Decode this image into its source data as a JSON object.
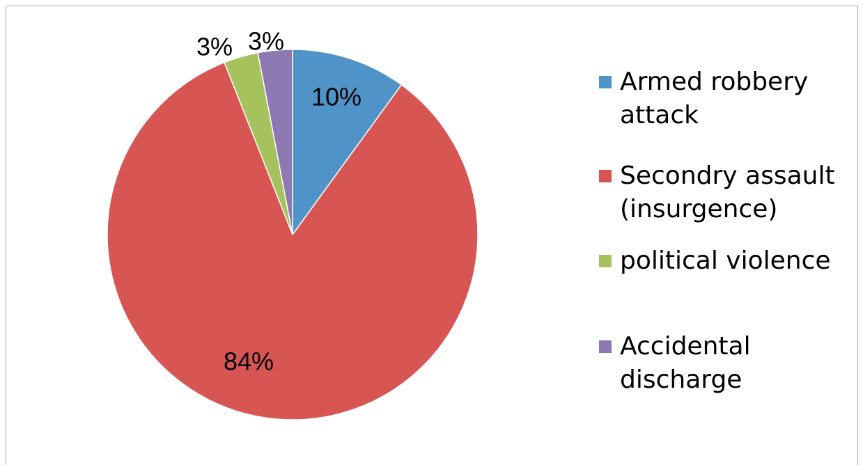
{
  "chart_data": {
    "type": "pie",
    "title": "",
    "slices": [
      {
        "name": "Armed robbery attack",
        "value": 10,
        "label": "10%",
        "color": "#4f93c9"
      },
      {
        "name": "Secondry assault (insurgence)",
        "value": 84,
        "label": "84%",
        "color": "#d75654"
      },
      {
        "name": "political violence",
        "value": 3,
        "label": "3%",
        "color": "#a6c25c"
      },
      {
        "name": "Accidental discharge",
        "value": 3,
        "label": "3%",
        "color": "#8e78b2"
      }
    ],
    "legend": {
      "placement": "right",
      "entries": [
        {
          "line1": "Armed robbery",
          "line2": "attack"
        },
        {
          "line1": "Secondry assault",
          "line2": "(insurgence)"
        },
        {
          "line1": "political violence",
          "line2": ""
        },
        {
          "line1": "Accidental",
          "line2": "discharge"
        }
      ]
    }
  }
}
